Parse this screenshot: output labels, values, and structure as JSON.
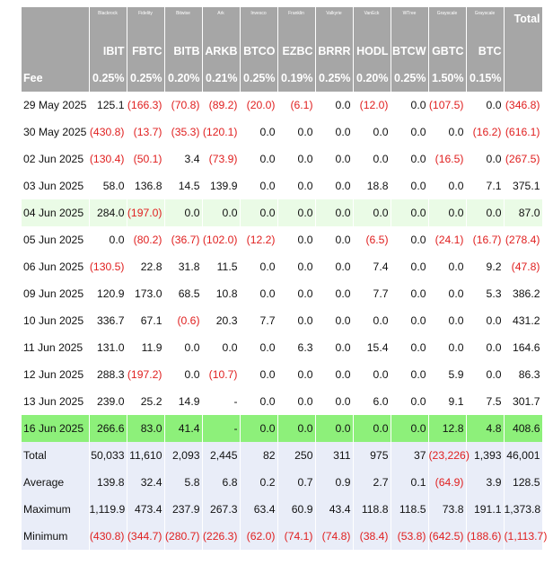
{
  "issuers": [
    "Blackrock",
    "Fidelity",
    "Bitwise",
    "Ark",
    "Invesco",
    "Franklin",
    "Valkyrie",
    "VanEck",
    "WTree",
    "Grayscale",
    "Grayscale"
  ],
  "total_label": "Total",
  "tickers": [
    "IBIT",
    "FBTC",
    "BITB",
    "ARKB",
    "BTCO",
    "EZBC",
    "BRRR",
    "HODL",
    "BTCW",
    "GBTC",
    "BTC"
  ],
  "fee_label": "Fee",
  "fees": [
    "0.25%",
    "0.25%",
    "0.20%",
    "0.21%",
    "0.25%",
    "0.19%",
    "0.25%",
    "0.20%",
    "0.25%",
    "1.50%",
    "0.15%"
  ],
  "rows": [
    {
      "date": "29 May 2025",
      "cells": [
        "125.1",
        "(166.3)",
        "(70.8)",
        "(89.2)",
        "(20.0)",
        "(6.1)",
        "0.0",
        "(12.0)",
        "0.0",
        "(107.5)",
        "0.0",
        "(346.8)"
      ]
    },
    {
      "date": "30 May 2025",
      "cells": [
        "(430.8)",
        "(13.7)",
        "(35.3)",
        "(120.1)",
        "0.0",
        "0.0",
        "0.0",
        "0.0",
        "0.0",
        "0.0",
        "(16.2)",
        "(616.1)"
      ]
    },
    {
      "date": "02 Jun 2025",
      "cells": [
        "(130.4)",
        "(50.1)",
        "3.4",
        "(73.9)",
        "0.0",
        "0.0",
        "0.0",
        "0.0",
        "0.0",
        "(16.5)",
        "0.0",
        "(267.5)"
      ]
    },
    {
      "date": "03 Jun 2025",
      "cells": [
        "58.0",
        "136.8",
        "14.5",
        "139.9",
        "0.0",
        "0.0",
        "0.0",
        "18.8",
        "0.0",
        "0.0",
        "7.1",
        "375.1"
      ]
    },
    {
      "date": "04 Jun 2025",
      "cells": [
        "284.0",
        "(197.0)",
        "0.0",
        "0.0",
        "0.0",
        "0.0",
        "0.0",
        "0.0",
        "0.0",
        "0.0",
        "0.0",
        "87.0"
      ],
      "highlight": "light"
    },
    {
      "date": "05 Jun 2025",
      "cells": [
        "0.0",
        "(80.2)",
        "(36.7)",
        "(102.0)",
        "(12.2)",
        "0.0",
        "0.0",
        "(6.5)",
        "0.0",
        "(24.1)",
        "(16.7)",
        "(278.4)"
      ]
    },
    {
      "date": "06 Jun 2025",
      "cells": [
        "(130.5)",
        "22.8",
        "31.8",
        "11.5",
        "0.0",
        "0.0",
        "0.0",
        "7.4",
        "0.0",
        "0.0",
        "9.2",
        "(47.8)"
      ]
    },
    {
      "date": "09 Jun 2025",
      "cells": [
        "120.9",
        "173.0",
        "68.5",
        "10.8",
        "0.0",
        "0.0",
        "0.0",
        "7.7",
        "0.0",
        "0.0",
        "5.3",
        "386.2"
      ]
    },
    {
      "date": "10 Jun 2025",
      "cells": [
        "336.7",
        "67.1",
        "(0.6)",
        "20.3",
        "7.7",
        "0.0",
        "0.0",
        "0.0",
        "0.0",
        "0.0",
        "0.0",
        "431.2"
      ]
    },
    {
      "date": "11 Jun 2025",
      "cells": [
        "131.0",
        "11.9",
        "0.0",
        "0.0",
        "0.0",
        "6.3",
        "0.0",
        "15.4",
        "0.0",
        "0.0",
        "0.0",
        "164.6"
      ]
    },
    {
      "date": "12 Jun 2025",
      "cells": [
        "288.3",
        "(197.2)",
        "0.0",
        "(10.7)",
        "0.0",
        "0.0",
        "0.0",
        "0.0",
        "0.0",
        "5.9",
        "0.0",
        "86.3"
      ]
    },
    {
      "date": "13 Jun 2025",
      "cells": [
        "239.0",
        "25.2",
        "14.9",
        "-",
        "0.0",
        "0.0",
        "0.0",
        "6.0",
        "0.0",
        "9.1",
        "7.5",
        "301.7"
      ]
    },
    {
      "date": "16 Jun 2025",
      "cells": [
        "266.6",
        "83.0",
        "41.4",
        "-",
        "0.0",
        "0.0",
        "0.0",
        "0.0",
        "0.0",
        "12.8",
        "4.8",
        "408.6"
      ],
      "highlight": "strong"
    }
  ],
  "stats": [
    {
      "label": "Total",
      "cells": [
        "50,033",
        "11,610",
        "2,093",
        "2,445",
        "82",
        "250",
        "311",
        "975",
        "37",
        "(23,226)",
        "1,393",
        "46,001"
      ]
    },
    {
      "label": "Average",
      "cells": [
        "139.8",
        "32.4",
        "5.8",
        "6.8",
        "0.2",
        "0.7",
        "0.9",
        "2.7",
        "0.1",
        "(64.9)",
        "3.9",
        "128.5"
      ]
    },
    {
      "label": "Maximum",
      "cells": [
        "1,119.9",
        "473.4",
        "237.9",
        "267.3",
        "63.4",
        "60.9",
        "43.4",
        "118.8",
        "118.5",
        "73.8",
        "191.1",
        "1,373.8"
      ]
    },
    {
      "label": "Minimum",
      "cells": [
        "(430.8)",
        "(344.7)",
        "(280.7)",
        "(226.3)",
        "(62.0)",
        "(74.1)",
        "(74.8)",
        "(38.4)",
        "(53.8)",
        "(642.5)",
        "(188.6)",
        "(1,113.7)"
      ]
    }
  ],
  "colors": {
    "header_bg": "#a6a6a6",
    "negative": "#e02020",
    "stat_bg": "#e9edf8",
    "highlight_light": "#eafbe6",
    "highlight_strong": "#8df07a"
  }
}
